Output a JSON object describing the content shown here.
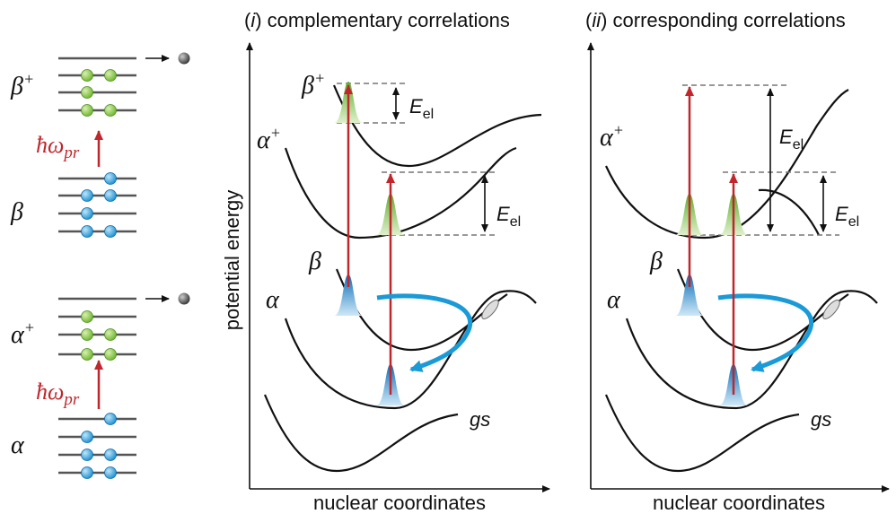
{
  "left_panel": {
    "beta_plus": {
      "base": "β",
      "sup": "+"
    },
    "pump_top": {
      "base": "ħω",
      "sub": "pr"
    },
    "beta": "β",
    "alpha_plus": {
      "base": "α",
      "sup": "+"
    },
    "pump_bottom": {
      "base": "ħω",
      "sub": "pr"
    },
    "alpha": "α"
  },
  "panel_i": {
    "title": {
      "open": "(",
      "numeral": "i",
      "rest": ") complementary correlations"
    },
    "y_axis_label": "potential energy",
    "x_axis_label": "nuclear coordinates",
    "beta_plus": {
      "base": "β",
      "sup": "+"
    },
    "alpha_plus": {
      "base": "α",
      "sup": "+"
    },
    "beta": "β",
    "alpha": "α",
    "gs": "gs",
    "energy_upper": {
      "base": "E",
      "sub": "el"
    },
    "energy_lower": {
      "base": "E",
      "sub": "el"
    }
  },
  "panel_ii": {
    "title": {
      "open": "(",
      "numeral": "ii",
      "rest": ") corresponding correlations"
    },
    "x_axis_label": "nuclear coordinates",
    "alpha_plus": {
      "base": "α",
      "sup": "+"
    },
    "beta": "β",
    "alpha": "α",
    "gs": "gs",
    "energy_upper": {
      "base": "E",
      "sub": "el"
    },
    "energy_lower": {
      "base": "E",
      "sub": "el"
    }
  }
}
